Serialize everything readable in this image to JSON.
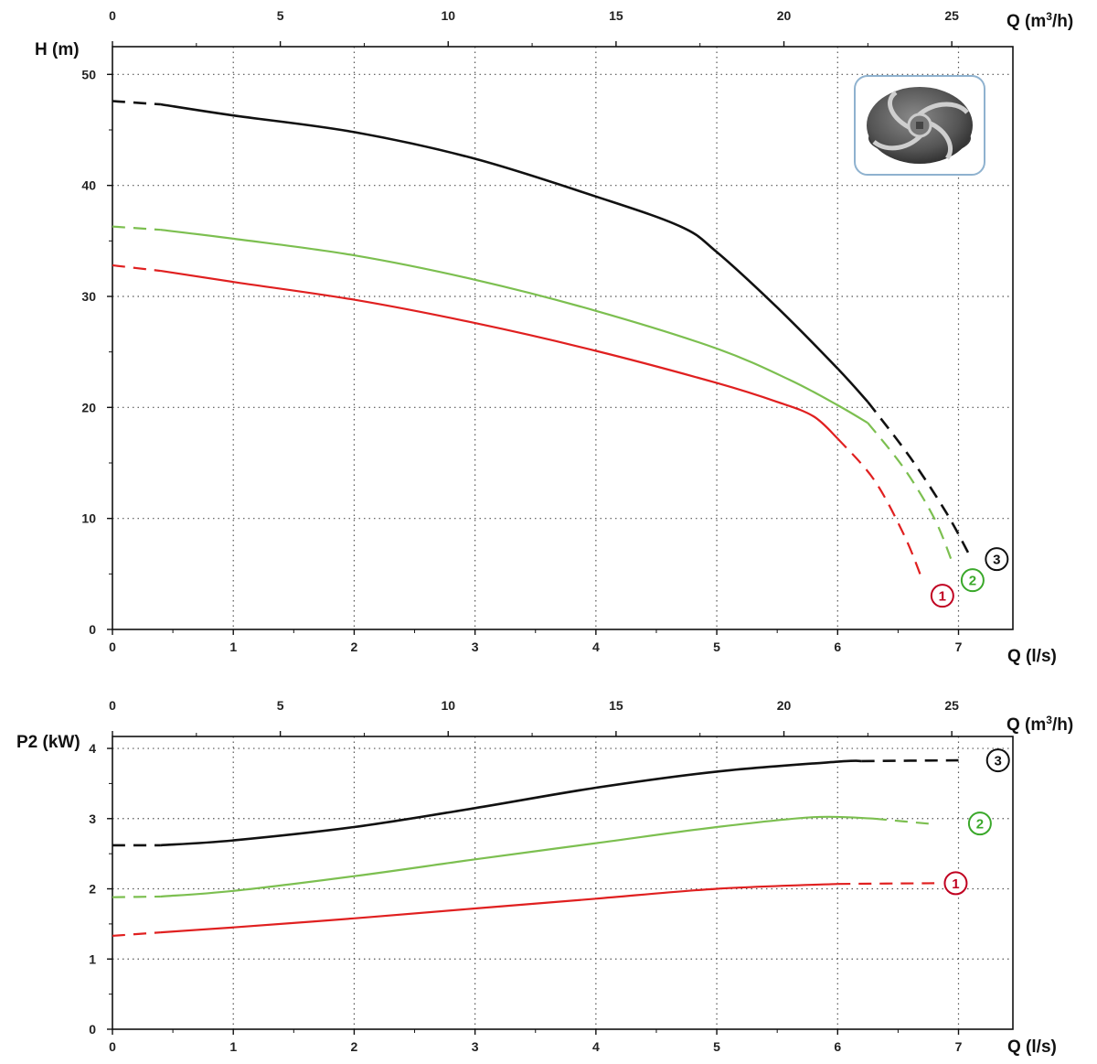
{
  "colors": {
    "1": "#e02020",
    "2": "#7cbf50",
    "3": "#111111",
    "marker_1": "#c00020",
    "marker_2": "#3aa82a",
    "marker_3": "#111111"
  },
  "chart_data": [
    {
      "type": "line",
      "ylabel": "H (m)",
      "xlabel": "Q (l/s)",
      "x2label_prefix": "Q (m",
      "x2label_sup": "3",
      "x2label_suffix": "/h)",
      "xlim": [
        0,
        7.45
      ],
      "ylim": [
        0,
        52.5
      ],
      "xticks": [
        0,
        1,
        2,
        3,
        4,
        5,
        6,
        7
      ],
      "yticks": [
        0,
        10,
        20,
        30,
        40,
        50
      ],
      "x2ticks": [
        0,
        5,
        10,
        15,
        20,
        25
      ],
      "grid": true,
      "series": [
        {
          "marker": "1",
          "solid": [
            [
              0.4,
              32.3
            ],
            [
              1,
              31.3
            ],
            [
              2,
              29.7
            ],
            [
              3,
              27.6
            ],
            [
              4,
              25.1
            ],
            [
              5,
              22.2
            ],
            [
              5.5,
              20.5
            ],
            [
              5.8,
              19.2
            ],
            [
              6.0,
              17.2
            ]
          ],
          "dashed_start": [
            [
              0,
              32.8
            ],
            [
              0.4,
              32.3
            ]
          ],
          "dashed_end": [
            [
              6.0,
              17.2
            ],
            [
              6.3,
              13.5
            ],
            [
              6.55,
              8.5
            ],
            [
              6.7,
              4.5
            ]
          ]
        },
        {
          "marker": "2",
          "solid": [
            [
              0.4,
              36.0
            ],
            [
              1,
              35.2
            ],
            [
              2,
              33.7
            ],
            [
              3,
              31.5
            ],
            [
              4,
              28.7
            ],
            [
              5,
              25.3
            ],
            [
              5.6,
              22.5
            ],
            [
              6.0,
              20.2
            ],
            [
              6.25,
              18.6
            ]
          ],
          "dashed_start": [
            [
              0,
              36.3
            ],
            [
              0.4,
              36.0
            ]
          ],
          "dashed_end": [
            [
              6.25,
              18.6
            ],
            [
              6.55,
              14.5
            ],
            [
              6.8,
              10.0
            ],
            [
              6.95,
              6.0
            ]
          ]
        },
        {
          "marker": "3",
          "solid": [
            [
              0.4,
              47.3
            ],
            [
              1,
              46.3
            ],
            [
              2,
              44.8
            ],
            [
              3,
              42.4
            ],
            [
              4,
              39.0
            ],
            [
              4.7,
              36.3
            ],
            [
              5.0,
              34.0
            ],
            [
              5.5,
              29.0
            ],
            [
              6.0,
              23.5
            ],
            [
              6.25,
              20.5
            ]
          ],
          "dashed_start": [
            [
              0,
              47.6
            ],
            [
              0.4,
              47.3
            ]
          ],
          "dashed_end": [
            [
              6.25,
              20.5
            ],
            [
              6.6,
              15.5
            ],
            [
              6.9,
              10.5
            ],
            [
              7.1,
              6.5
            ]
          ]
        }
      ]
    },
    {
      "type": "line",
      "ylabel": "P2 (kW)",
      "xlabel": "Q (l/s)",
      "x2label_prefix": "Q (m",
      "x2label_sup": "3",
      "x2label_suffix": "/h)",
      "xlim": [
        0,
        7.45
      ],
      "ylim": [
        0,
        4.17
      ],
      "xticks": [
        0,
        1,
        2,
        3,
        4,
        5,
        6,
        7
      ],
      "yticks": [
        0,
        1,
        2,
        3,
        4
      ],
      "x2ticks": [
        0,
        5,
        10,
        15,
        20,
        25
      ],
      "grid": true,
      "series": [
        {
          "marker": "1",
          "solid": [
            [
              0.4,
              1.38
            ],
            [
              1,
              1.45
            ],
            [
              2,
              1.58
            ],
            [
              3,
              1.72
            ],
            [
              4,
              1.86
            ],
            [
              5,
              2.0
            ],
            [
              6.0,
              2.07
            ]
          ],
          "dashed_start": [
            [
              0,
              1.33
            ],
            [
              0.4,
              1.38
            ]
          ],
          "dashed_end": [
            [
              6.0,
              2.07
            ],
            [
              6.8,
              2.08
            ]
          ]
        },
        {
          "marker": "2",
          "solid": [
            [
              0.4,
              1.89
            ],
            [
              1,
              1.97
            ],
            [
              2,
              2.18
            ],
            [
              3,
              2.42
            ],
            [
              4,
              2.65
            ],
            [
              5,
              2.88
            ],
            [
              5.8,
              3.02
            ],
            [
              6.3,
              3.0
            ]
          ],
          "dashed_start": [
            [
              0,
              1.88
            ],
            [
              0.4,
              1.89
            ]
          ],
          "dashed_end": [
            [
              6.3,
              3.0
            ],
            [
              6.8,
              2.92
            ]
          ]
        },
        {
          "marker": "3",
          "solid": [
            [
              0.4,
              2.62
            ],
            [
              1,
              2.69
            ],
            [
              2,
              2.88
            ],
            [
              3,
              3.15
            ],
            [
              4,
              3.44
            ],
            [
              5,
              3.67
            ],
            [
              6.0,
              3.81
            ],
            [
              6.2,
              3.82
            ]
          ],
          "dashed_start": [
            [
              0,
              2.62
            ],
            [
              0.4,
              2.62
            ]
          ],
          "dashed_end": [
            [
              6.2,
              3.82
            ],
            [
              7.0,
              3.83
            ]
          ]
        }
      ]
    }
  ],
  "markers": [
    {
      "chart": 0,
      "label": "1",
      "x": 6.7,
      "y": 3.2
    },
    {
      "chart": 0,
      "label": "2",
      "x": 6.95,
      "y": 4.6
    },
    {
      "chart": 0,
      "label": "3",
      "x": 7.15,
      "y": 6.5
    },
    {
      "chart": 1,
      "label": "1",
      "x": 6.75,
      "y": 2.08
    },
    {
      "chart": 1,
      "label": "2",
      "x": 6.95,
      "y": 2.93
    },
    {
      "chart": 1,
      "label": "3",
      "x": 7.1,
      "y": 3.83
    }
  ],
  "inset_image": {
    "icon": "impeller-icon"
  }
}
